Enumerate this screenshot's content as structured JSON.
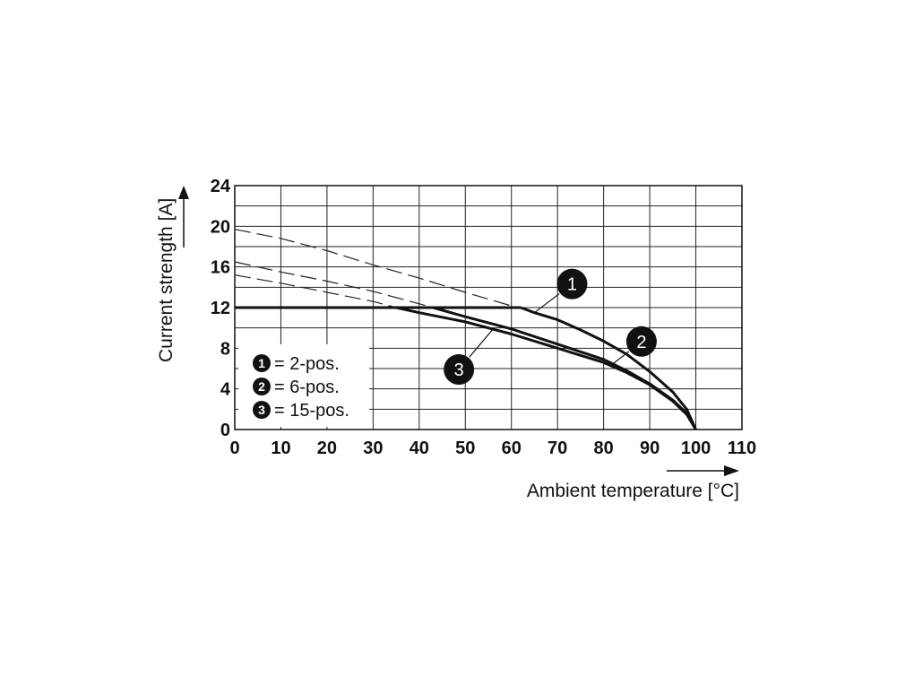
{
  "chart_data": {
    "type": "line",
    "xlabel": "Ambient temperature [°C]",
    "ylabel": "Current strength [A]",
    "xlim": [
      0,
      110
    ],
    "ylim": [
      0,
      24
    ],
    "x_ticks": [
      0,
      10,
      20,
      30,
      40,
      50,
      60,
      70,
      80,
      90,
      100,
      110
    ],
    "y_ticks": [
      0,
      4,
      8,
      12,
      16,
      20,
      24
    ],
    "grid": true,
    "legend_position": "bottom-left",
    "legend": [
      {
        "marker": "1",
        "label": "= 2-pos."
      },
      {
        "marker": "2",
        "label": "= 6-pos."
      },
      {
        "marker": "3",
        "label": "= 15-pos."
      }
    ],
    "plateau": {
      "x": [
        0,
        62
      ],
      "y": 12
    },
    "series": [
      {
        "marker": "1",
        "label_position": "upper-right",
        "dashed": {
          "x": [
            0,
            10,
            20,
            30,
            40,
            50,
            62
          ],
          "y": [
            19.7,
            18.8,
            17.6,
            16.2,
            14.9,
            13.5,
            11.9
          ]
        },
        "solid": {
          "x": [
            62,
            65,
            70,
            75,
            80,
            85,
            90,
            95,
            98,
            100
          ],
          "y": [
            12.0,
            11.5,
            10.8,
            9.8,
            8.7,
            7.4,
            5.7,
            3.7,
            2.0,
            0
          ]
        }
      },
      {
        "marker": "2",
        "label_position": "right",
        "dashed": {
          "x": [
            0,
            10,
            20,
            30,
            43
          ],
          "y": [
            16.5,
            15.5,
            14.6,
            13.6,
            12.0
          ]
        },
        "solid": {
          "x": [
            43,
            50,
            60,
            70,
            80,
            85,
            90,
            95,
            98,
            100
          ],
          "y": [
            12.0,
            11.1,
            9.9,
            8.4,
            6.9,
            5.8,
            4.5,
            2.9,
            1.6,
            0
          ]
        }
      },
      {
        "marker": "3",
        "label_position": "below",
        "dashed": {
          "x": [
            0,
            10,
            20,
            30,
            35
          ],
          "y": [
            15.2,
            14.4,
            13.5,
            12.6,
            12.0
          ]
        },
        "solid": {
          "x": [
            35,
            40,
            50,
            60,
            70,
            80,
            85,
            90,
            95,
            98,
            100
          ],
          "y": [
            12.0,
            11.5,
            10.6,
            9.4,
            8.0,
            6.6,
            5.6,
            4.4,
            2.8,
            1.5,
            0
          ]
        }
      }
    ]
  }
}
